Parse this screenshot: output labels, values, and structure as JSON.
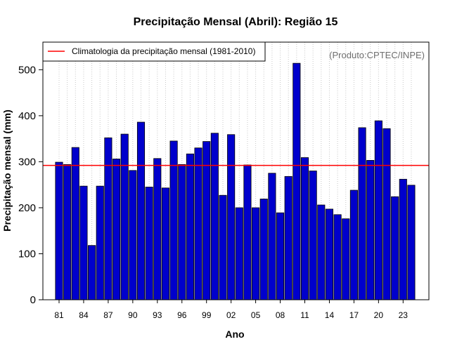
{
  "chart_data": {
    "type": "bar",
    "title": "Precipitação Mensal (Abril): Região 15",
    "xlabel": "Ano",
    "ylabel": "Precipitação mensal (mm)",
    "source": "(Produto:CPTEC/INPE)",
    "ylim": [
      0,
      560
    ],
    "yticks": [
      0,
      100,
      200,
      300,
      400,
      500
    ],
    "grid": true,
    "bar_color": "#0000cc",
    "line_color": "#ff0000",
    "categories": [
      "1981",
      "1982",
      "1983",
      "1984",
      "1985",
      "1986",
      "1987",
      "1988",
      "1989",
      "1990",
      "1991",
      "1992",
      "1993",
      "1994",
      "1995",
      "1996",
      "1997",
      "1998",
      "1999",
      "2000",
      "2001",
      "2002",
      "2003",
      "2004",
      "2005",
      "2006",
      "2007",
      "2008",
      "2009",
      "2010",
      "2011",
      "2012",
      "2013",
      "2014",
      "2015",
      "2016",
      "2017",
      "2018",
      "2019",
      "2020",
      "2021",
      "2022",
      "2023",
      "2024"
    ],
    "values": [
      299,
      294,
      331,
      247,
      118,
      247,
      352,
      306,
      360,
      281,
      386,
      245,
      307,
      243,
      345,
      294,
      317,
      330,
      344,
      362,
      227,
      359,
      200,
      293,
      200,
      219,
      275,
      189,
      268,
      514,
      309,
      280,
      206,
      197,
      185,
      176,
      238,
      374,
      303,
      389,
      372,
      224,
      262,
      249
    ],
    "xtick_labels": [
      {
        "index": 0,
        "label": "81"
      },
      {
        "index": 3,
        "label": "84"
      },
      {
        "index": 6,
        "label": "87"
      },
      {
        "index": 9,
        "label": "90"
      },
      {
        "index": 12,
        "label": "93"
      },
      {
        "index": 15,
        "label": "96"
      },
      {
        "index": 18,
        "label": "99"
      },
      {
        "index": 21,
        "label": "02"
      },
      {
        "index": 24,
        "label": "05"
      },
      {
        "index": 27,
        "label": "08"
      },
      {
        "index": 30,
        "label": "11"
      },
      {
        "index": 33,
        "label": "14"
      },
      {
        "index": 36,
        "label": "17"
      },
      {
        "index": 39,
        "label": "20"
      },
      {
        "index": 42,
        "label": "23"
      }
    ],
    "climatology": {
      "label": "Climatologia da precipitação mensal (1981-2010)",
      "value": 292
    },
    "legend_position": "top-left"
  }
}
